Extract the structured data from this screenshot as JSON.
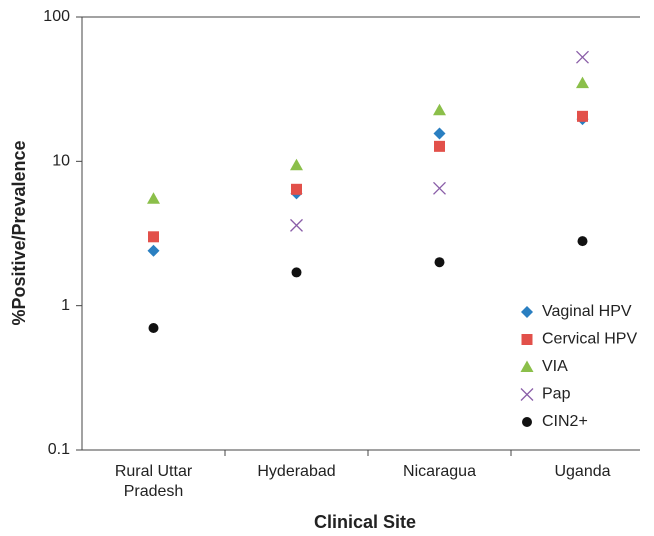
{
  "chart_data": {
    "type": "scatter",
    "ylabel": "%Positive/Prevalence",
    "xlabel": "Clinical Site",
    "categories": [
      "Rural Uttar Pradesh",
      "Hyderabad",
      "Nicaragua",
      "Uganda"
    ],
    "series": [
      {
        "name": "Vaginal HPV",
        "color": "#2a7fc1",
        "marker": "diamond",
        "values": [
          2.4,
          6.0,
          15.6,
          19.6
        ]
      },
      {
        "name": "Cervical HPV",
        "color": "#e2504a",
        "marker": "square",
        "values": [
          3.0,
          6.4,
          12.7,
          20.5
        ]
      },
      {
        "name": "VIA",
        "color": "#8bbf4a",
        "marker": "triangle",
        "values": [
          5.5,
          9.4,
          22.6,
          34.8
        ]
      },
      {
        "name": "Pap",
        "color": "#8a5ea8",
        "marker": "x",
        "values": [
          null,
          3.6,
          6.5,
          52.7
        ]
      },
      {
        "name": "CIN2+",
        "color": "#111111",
        "marker": "circle",
        "values": [
          0.7,
          1.7,
          2.0,
          2.8
        ]
      }
    ],
    "ylim": [
      0.1,
      100
    ],
    "yticks": [
      0.1,
      1,
      10,
      100
    ],
    "log_y": true,
    "legend": "lower right"
  }
}
